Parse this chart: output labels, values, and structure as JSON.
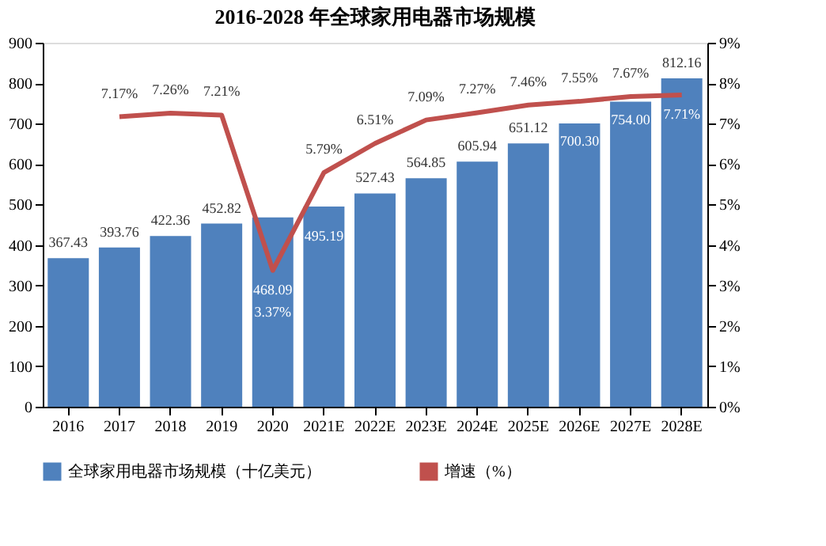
{
  "chart_data": {
    "type": "bar",
    "title": "2016-2028 年全球家用电器市场规模",
    "categories": [
      "2016",
      "2017",
      "2018",
      "2019",
      "2020",
      "2021E",
      "2022E",
      "2023E",
      "2024E",
      "2025E",
      "2026E",
      "2027E",
      "2028E"
    ],
    "series": [
      {
        "name": "全球家用电器市场规模（十亿美元）",
        "color": "#4f81bd",
        "values": [
          367.43,
          393.76,
          422.36,
          452.82,
          468.09,
          495.19,
          527.43,
          564.85,
          605.94,
          651.12,
          700.3,
          754.0,
          812.16
        ],
        "value_labels": [
          "367.43",
          "393.76",
          "422.36",
          "452.82",
          "468.09",
          "495.19",
          "527.43",
          "564.85",
          "605.94",
          "651.12",
          "700.30",
          "754.00",
          "812.16"
        ]
      },
      {
        "name": "增速（%）",
        "type": "line",
        "axis": "y2",
        "color": "#c0504d",
        "values": [
          null,
          7.17,
          7.26,
          7.21,
          3.37,
          5.79,
          6.51,
          7.09,
          7.27,
          7.46,
          7.55,
          7.67,
          7.71
        ],
        "value_labels": [
          null,
          "7.17%",
          "7.26%",
          "7.21%",
          "3.37%",
          "5.79%",
          "6.51%",
          "7.09%",
          "7.27%",
          "7.46%",
          "7.55%",
          "7.67%",
          "7.71%"
        ]
      }
    ],
    "data_labels": true,
    "ylim": [
      0,
      900
    ],
    "yticks": [
      0,
      100,
      200,
      300,
      400,
      500,
      600,
      700,
      800,
      900
    ],
    "y2lim": [
      0,
      9
    ],
    "y2ticks": [
      {
        "value": 0,
        "label": "0%"
      },
      {
        "value": 1,
        "label": "1%"
      },
      {
        "value": 2,
        "label": "2%"
      },
      {
        "value": 3,
        "label": "3%"
      },
      {
        "value": 4,
        "label": "4%"
      },
      {
        "value": 5,
        "label": "5%"
      },
      {
        "value": 6,
        "label": "6%"
      },
      {
        "value": 7,
        "label": "7%"
      },
      {
        "value": 8,
        "label": "8%"
      },
      {
        "value": 9,
        "label": "9%"
      }
    ],
    "grid": false,
    "legend": "bottom",
    "line_style": "solid",
    "marker": "none"
  }
}
